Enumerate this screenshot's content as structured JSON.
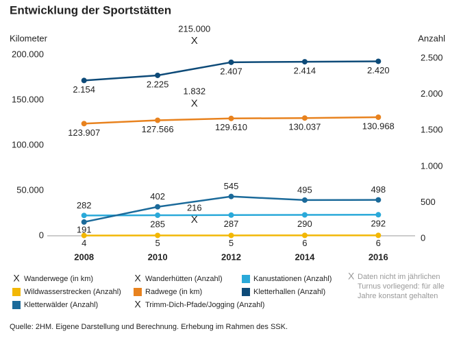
{
  "chart_data": {
    "type": "line",
    "title": "Entwicklung der Sportstätten",
    "y_label": "Kilometer",
    "y2_label": "Anzahl",
    "x": [
      2008,
      2010,
      2012,
      2014,
      2016
    ],
    "xlim": [
      2007,
      2017
    ],
    "xticks": [
      2008,
      2010,
      2012,
      2014,
      2016
    ],
    "ylim": [
      0,
      215000
    ],
    "yticks": [
      0,
      {
        "value": 50000,
        "label": "50.000"
      },
      {
        "value": 100000,
        "label": "100.000"
      },
      {
        "value": 150000,
        "label": "150.000"
      },
      {
        "value": 200000,
        "label": "200.000"
      }
    ],
    "y2lim": [
      0,
      2700
    ],
    "y2ticks": [
      0,
      500,
      {
        "value": 1000,
        "label": "1.000"
      },
      {
        "value": 1500,
        "label": "1.500"
      },
      {
        "value": 2000,
        "label": "2.000"
      },
      {
        "value": 2500,
        "label": "2.500"
      }
    ],
    "series": [
      {
        "name": "Wanderwege (in km)",
        "color": "#1a1a1a",
        "marker": "x",
        "x": [
          2011
        ],
        "values": [
          215000
        ],
        "value_labels": [
          "215.000"
        ]
      },
      {
        "name": "Wanderhütten (Anzahl)",
        "color": "#4fb3dc",
        "marker": "x",
        "axis": "y2",
        "x": [
          2011
        ],
        "values": [
          1832
        ],
        "value_labels": [
          "1.832"
        ]
      },
      {
        "name": "Kanustationen (Anzahl)",
        "color": "#2aa9d9",
        "axis": "y2",
        "values": [
          282,
          285,
          287,
          290,
          292
        ]
      },
      {
        "name": "Wildwasserstrecken (Anzahl)",
        "color": "#f2b705",
        "axis": "y2",
        "values": [
          4,
          5,
          5,
          6,
          6
        ]
      },
      {
        "name": "Radwege (in km)",
        "color": "#e8821e",
        "values": [
          123907,
          127566,
          129610,
          130037,
          130968
        ],
        "value_labels": [
          "123.907",
          "127.566",
          "129.610",
          "130.037",
          "130.968"
        ]
      },
      {
        "name": "Kletterhallen (Anzahl)",
        "color": "#0d4a78",
        "axis": "y2",
        "values": [
          2154,
          2225,
          2407,
          2414,
          2420
        ],
        "value_labels": [
          "2.154",
          "2.225",
          "2.407",
          "2.414",
          "2.420"
        ]
      },
      {
        "name": "Kletterwälder (Anzahl)",
        "color": "#1b6a9a",
        "axis": "y2",
        "values": [
          191,
          402,
          545,
          495,
          498
        ]
      },
      {
        "name": "Trimm-Dich-Pfade/Jogging (Anzahl)",
        "color": "#8a1b3c",
        "marker": "x",
        "axis": "y2",
        "x": [
          2011
        ],
        "values": [
          216
        ]
      }
    ],
    "note": "Daten nicht im jährlichen Turnus vorliegend: für alle Jahre konstant gehalten",
    "note_marker": "X",
    "source": "Quelle: 2HM. Eigene Darstellung und Berechnung. Erhebung im Rahmen des SSK."
  }
}
